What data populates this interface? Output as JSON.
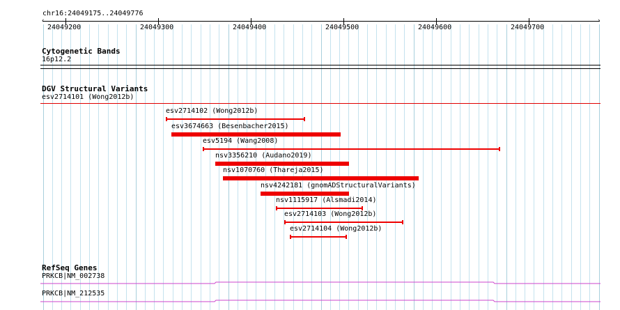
{
  "ruler": {
    "location": "chr16:24049175..24049776",
    "ticks": [
      "24049200",
      "24049300",
      "24049400",
      "24049500",
      "24049600",
      "24049700"
    ]
  },
  "cytobands": {
    "title": "Cytogenetic Bands",
    "band": "16p12.2"
  },
  "dgv": {
    "title": "DGV Structural Variants",
    "first_feature": "esv2714101 (Wong2012b)",
    "features": [
      {
        "label": "esv2714102 (Wong2012b)",
        "style": "thin"
      },
      {
        "label": "esv3674663 (Besenbacher2015)",
        "style": "thick"
      },
      {
        "label": "esv5194 (Wang2008)",
        "style": "thin"
      },
      {
        "label": "nsv3356210 (Audano2019)",
        "style": "thick"
      },
      {
        "label": "nsv1070760 (Thareja2015)",
        "style": "thick"
      },
      {
        "label": "nsv4242181 (gnomADStructuralVariants)",
        "style": "thick"
      },
      {
        "label": "nsv1115917 (Alsmadi2014)",
        "style": "thin"
      },
      {
        "label": "esv2714103 (Wong2012b)",
        "style": "thin"
      },
      {
        "label": "esv2714104 (Wong2012b)",
        "style": "thin"
      }
    ]
  },
  "refseq": {
    "title": "RefSeq Genes",
    "genes": [
      {
        "label": "PRKCB|NM_002738"
      },
      {
        "label": "PRKCB|NM_212535"
      }
    ],
    "gene_color": "#cc44cc"
  },
  "colors": {
    "grid_line": "#c4e2ee",
    "variant": "#ee0000",
    "track_separator": "#e00000"
  }
}
